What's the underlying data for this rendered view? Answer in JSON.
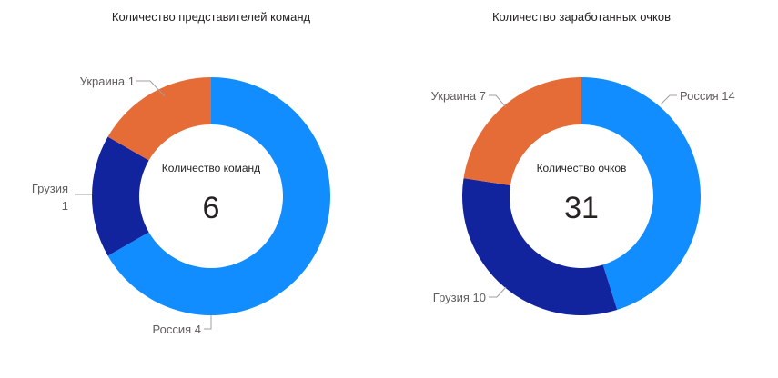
{
  "chart_data": [
    {
      "type": "pie",
      "variant": "donut",
      "title": "Количество представителей команд",
      "center_label": "Количество команд",
      "center_value": "6",
      "slices": [
        {
          "key": "russia",
          "label": "Россия 4",
          "value": 4,
          "color": "#118dff"
        },
        {
          "key": "georgia",
          "label": "Грузия 1",
          "label_lines": [
            "Грузия",
            "1"
          ],
          "value": 1,
          "color": "#12239e"
        },
        {
          "key": "ukraine",
          "label": "Украина 1",
          "value": 1,
          "color": "#e66c37"
        }
      ]
    },
    {
      "type": "pie",
      "variant": "donut",
      "title": "Количество заработанных очков",
      "center_label": "Количество очков",
      "center_value": "31",
      "slices": [
        {
          "key": "russia",
          "label": "Россия 14",
          "value": 14,
          "color": "#118dff"
        },
        {
          "key": "georgia",
          "label": "Грузия 10",
          "value": 10,
          "color": "#12239e"
        },
        {
          "key": "ukraine",
          "label": "Украина 7",
          "value": 7,
          "color": "#e66c37"
        }
      ]
    }
  ]
}
